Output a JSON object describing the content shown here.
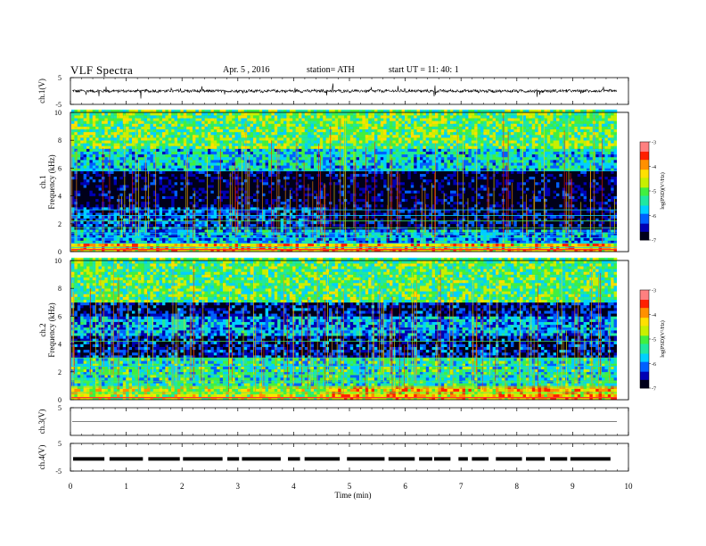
{
  "header": {
    "title": "VLF  Spectra",
    "date": "Apr. 5  , 2016",
    "station": "station= ATH",
    "start_time": "start  UT  =    11: 40: 1"
  },
  "colors": {
    "spectrogram_scale": [
      "#00001a",
      "#0000b4",
      "#0060ff",
      "#00d0ff",
      "#20e8a0",
      "#40f040",
      "#c8f000",
      "#ffe000",
      "#ff9000",
      "#ff2000",
      "#ff8080",
      "#ffffff"
    ]
  },
  "chart_data": [
    {
      "type": "line",
      "panel": "ch1-waveform",
      "ylabel": "ch.1(V)",
      "ylim": [
        -5,
        5
      ],
      "yticks": [
        "5",
        "-5"
      ],
      "xlim": [
        0,
        10
      ],
      "description_values": {
        "baseline_V": 0,
        "noise_amplitude_V": 0.6,
        "spike_amplitude_V": 2.0
      }
    },
    {
      "type": "heatmap",
      "panel": "ch1-spectrogram",
      "ylabel": "ch.1\nFrequency  (kHz)",
      "ylabel_lines": [
        "ch.1",
        "Frequency  (kHz)"
      ],
      "ylim": [
        0,
        10
      ],
      "yticks": [
        "0",
        "2",
        "4",
        "6",
        "8",
        "10"
      ],
      "xlim": [
        0,
        9.8
      ],
      "zlim": [
        -7,
        -3
      ],
      "colorbar_label": "log(PSD)(V²/Hz)",
      "colorbar_ticks": [
        "-3",
        "-4",
        "-5",
        "-6",
        "-7"
      ],
      "bands": [
        {
          "fmin": 0.0,
          "fmax": 0.6,
          "level": -4.2
        },
        {
          "fmin": 0.6,
          "fmax": 1.6,
          "level": -5.8
        },
        {
          "fmin": 1.6,
          "fmax": 3.2,
          "level": -6.3
        },
        {
          "fmin": 3.2,
          "fmax": 5.8,
          "level": -6.9
        },
        {
          "fmin": 5.8,
          "fmax": 7.5,
          "level": -5.6
        },
        {
          "fmin": 7.5,
          "fmax": 10.0,
          "level": -5.0
        }
      ],
      "tone_lines_kHz": [
        0.3,
        0.6,
        1.0,
        1.3,
        1.7,
        2.2,
        2.6,
        3.0,
        5.8
      ]
    },
    {
      "type": "heatmap",
      "panel": "ch2-spectrogram",
      "ylabel": "ch.2\nFrequency  (kHz)",
      "ylabel_lines": [
        "ch.2",
        "Frequency  (kHz)"
      ],
      "ylim": [
        0,
        10
      ],
      "yticks": [
        "0",
        "2",
        "4",
        "6",
        "8",
        "10"
      ],
      "xlim": [
        0,
        9.8
      ],
      "zlim": [
        -7,
        -3
      ],
      "colorbar_label": "log(PSD)(V²/Hz)",
      "colorbar_ticks": [
        "-3",
        "-4",
        "-5",
        "-6",
        "-7"
      ],
      "bands": [
        {
          "fmin": 0.0,
          "fmax": 1.0,
          "level": -4.6
        },
        {
          "fmin": 1.0,
          "fmax": 3.0,
          "level": -5.4
        },
        {
          "fmin": 3.0,
          "fmax": 4.6,
          "level": -6.5
        },
        {
          "fmin": 4.6,
          "fmax": 6.0,
          "level": -5.9
        },
        {
          "fmin": 6.0,
          "fmax": 7.0,
          "level": -6.6
        },
        {
          "fmin": 7.0,
          "fmax": 10.0,
          "level": -5.1
        }
      ],
      "tone_lines_kHz": [
        0.5,
        0.9,
        1.3,
        1.8,
        2.4,
        3.0,
        4.2,
        5.0
      ]
    },
    {
      "type": "line",
      "panel": "ch3-waveform",
      "ylabel": "ch.3(V)",
      "ylim": [
        -5,
        5
      ],
      "yticks": [
        "5"
      ],
      "xlim": [
        0,
        10
      ],
      "description_values": {
        "baseline_V": 0
      }
    },
    {
      "type": "line",
      "panel": "ch4-waveform",
      "ylabel": "ch.4(V)",
      "ylim": [
        -5,
        5
      ],
      "yticks": [
        "5",
        "-5"
      ],
      "xlim": [
        0,
        10
      ],
      "description_values": {
        "baseline_V": -0.6
      }
    }
  ],
  "x_axis": {
    "label": "Time  (min)",
    "ticks": [
      "0",
      "1",
      "2",
      "3",
      "4",
      "5",
      "6",
      "7",
      "8",
      "9",
      "10"
    ]
  }
}
